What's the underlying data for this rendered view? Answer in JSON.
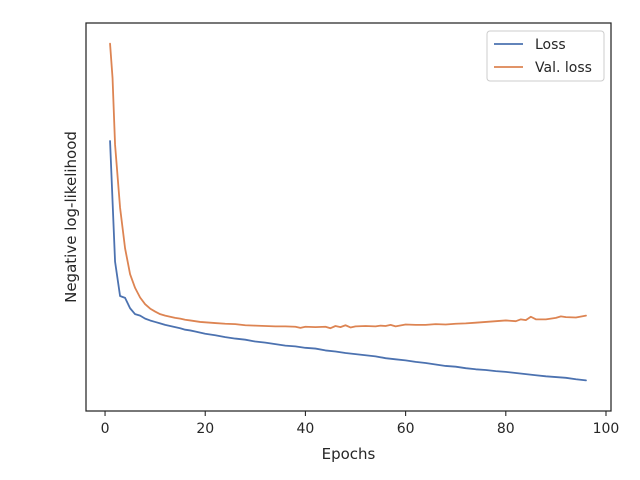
{
  "chart_data": {
    "type": "line",
    "title": "",
    "xlabel": "Epochs",
    "ylabel": "Negative log-likelihood",
    "xlim": [
      -3.8,
      101
    ],
    "ylim": [
      0,
      1
    ],
    "xticks": [
      0,
      20,
      40,
      60,
      80,
      100
    ],
    "xtick_labels": [
      "0",
      "20",
      "40",
      "60",
      "80",
      "100"
    ],
    "yticks_shown": false,
    "grid": false,
    "legend": "top-right",
    "series": [
      {
        "name": "Loss",
        "color": "#4c72b0",
        "x": [
          1,
          2,
          3,
          4,
          5,
          6,
          7,
          8,
          9,
          10,
          11,
          12,
          13,
          14,
          15,
          16,
          17,
          18,
          19,
          20,
          22,
          24,
          26,
          28,
          30,
          32,
          34,
          36,
          38,
          40,
          42,
          44,
          46,
          48,
          50,
          52,
          54,
          56,
          58,
          60,
          62,
          64,
          66,
          68,
          70,
          72,
          74,
          76,
          78,
          80,
          82,
          84,
          86,
          88,
          90,
          92,
          94,
          96
        ],
        "values": [
          0.7,
          0.374,
          0.281,
          0.276,
          0.248,
          0.232,
          0.228,
          0.22,
          0.215,
          0.211,
          0.207,
          0.203,
          0.2,
          0.197,
          0.194,
          0.19,
          0.188,
          0.185,
          0.182,
          0.179,
          0.175,
          0.17,
          0.166,
          0.163,
          0.158,
          0.155,
          0.151,
          0.147,
          0.145,
          0.141,
          0.139,
          0.134,
          0.131,
          0.127,
          0.124,
          0.121,
          0.118,
          0.113,
          0.11,
          0.107,
          0.103,
          0.1,
          0.096,
          0.092,
          0.09,
          0.086,
          0.083,
          0.081,
          0.078,
          0.076,
          0.073,
          0.07,
          0.067,
          0.064,
          0.062,
          0.06,
          0.056,
          0.053
        ]
      },
      {
        "name": "Val. loss",
        "color": "#dd8452",
        "x": [
          1,
          1.5,
          2,
          3,
          4,
          5,
          6,
          7,
          8,
          9,
          10,
          11,
          12,
          13,
          14,
          15,
          16,
          17,
          18,
          19,
          20,
          22,
          24,
          26,
          28,
          30,
          32,
          34,
          36,
          38,
          39,
          40,
          42,
          44,
          45,
          46,
          47,
          48,
          49,
          50,
          52,
          54,
          55,
          56,
          57,
          58,
          60,
          62,
          64,
          66,
          68,
          70,
          72,
          74,
          76,
          78,
          80,
          82,
          83,
          84,
          85,
          86,
          88,
          90,
          91,
          92,
          94,
          96
        ],
        "values": [
          0.963,
          0.87,
          0.69,
          0.52,
          0.41,
          0.34,
          0.303,
          0.277,
          0.259,
          0.247,
          0.239,
          0.232,
          0.228,
          0.225,
          0.222,
          0.22,
          0.217,
          0.215,
          0.213,
          0.211,
          0.21,
          0.208,
          0.206,
          0.205,
          0.202,
          0.201,
          0.2,
          0.199,
          0.199,
          0.198,
          0.195,
          0.198,
          0.197,
          0.198,
          0.194,
          0.2,
          0.197,
          0.202,
          0.196,
          0.199,
          0.2,
          0.199,
          0.201,
          0.2,
          0.203,
          0.199,
          0.204,
          0.203,
          0.203,
          0.205,
          0.204,
          0.206,
          0.207,
          0.209,
          0.211,
          0.213,
          0.215,
          0.213,
          0.218,
          0.216,
          0.225,
          0.218,
          0.218,
          0.222,
          0.226,
          0.224,
          0.223,
          0.228
        ]
      }
    ]
  }
}
